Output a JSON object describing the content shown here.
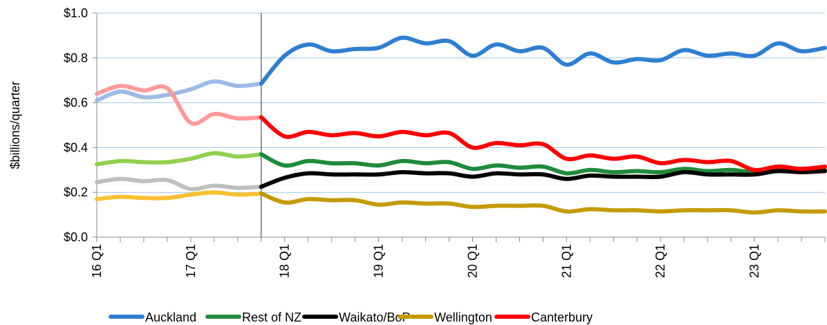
{
  "chart_data": {
    "type": "line",
    "y_label": "$billions/quarter",
    "categories": [
      "16 Q1",
      null,
      null,
      null,
      "17 Q1",
      null,
      null,
      null,
      "18 Q1",
      null,
      null,
      null,
      "19 Q1",
      null,
      null,
      null,
      "20 Q1",
      null,
      null,
      null,
      "21 Q1",
      null,
      null,
      null,
      "22 Q1",
      null,
      null,
      null,
      "23 Q1",
      null,
      null,
      null
    ],
    "vline_index": 7,
    "ylim": [
      0,
      1
    ],
    "yticks": [
      {
        "value": 0,
        "label": "$0.0"
      },
      {
        "value": 0.2,
        "label": "$0.2"
      },
      {
        "value": 0.4,
        "label": "$0.4"
      },
      {
        "value": 0.6,
        "label": "$0.6"
      },
      {
        "value": 0.8,
        "label": "$0.8"
      },
      {
        "value": 1,
        "label": "$1.0"
      }
    ],
    "grid": true,
    "legend": "bottom",
    "series": [
      {
        "name": "Auckland",
        "color": "#2f7fd0",
        "faded_color": "#9dbbe6",
        "values": [
          0.61,
          0.65,
          0.625,
          0.635,
          0.66,
          0.695,
          0.675,
          0.685,
          0.81,
          0.86,
          0.83,
          0.84,
          0.845,
          0.89,
          0.865,
          0.875,
          0.81,
          0.86,
          0.83,
          0.845,
          0.77,
          0.82,
          0.78,
          0.795,
          0.79,
          0.835,
          0.81,
          0.82,
          0.81,
          0.865,
          0.83,
          0.845
        ]
      },
      {
        "name": "Rest of NZ",
        "color": "#1f8a3b",
        "faded_color": "#92d050",
        "values": [
          0.325,
          0.34,
          0.335,
          0.335,
          0.35,
          0.375,
          0.36,
          0.37,
          0.32,
          0.34,
          0.33,
          0.33,
          0.32,
          0.34,
          0.33,
          0.335,
          0.305,
          0.32,
          0.31,
          0.315,
          0.285,
          0.3,
          0.29,
          0.295,
          0.29,
          0.305,
          0.295,
          0.3,
          0.29,
          0.3,
          0.295,
          0.3
        ]
      },
      {
        "name": "Waikato/BoP",
        "color": "#000000",
        "faded_color": "#bfbfbf",
        "values": [
          0.245,
          0.26,
          0.25,
          0.255,
          0.215,
          0.23,
          0.22,
          0.225,
          0.265,
          0.285,
          0.28,
          0.28,
          0.28,
          0.29,
          0.285,
          0.285,
          0.27,
          0.285,
          0.28,
          0.28,
          0.26,
          0.275,
          0.27,
          0.27,
          0.27,
          0.29,
          0.28,
          0.28,
          0.28,
          0.295,
          0.29,
          0.295
        ]
      },
      {
        "name": "Wellington",
        "color": "#c49a00",
        "faded_color": "#f7c12f",
        "values": [
          0.17,
          0.18,
          0.175,
          0.175,
          0.19,
          0.2,
          0.19,
          0.195,
          0.155,
          0.17,
          0.165,
          0.165,
          0.145,
          0.155,
          0.15,
          0.15,
          0.135,
          0.14,
          0.14,
          0.14,
          0.115,
          0.125,
          0.12,
          0.12,
          0.115,
          0.12,
          0.12,
          0.12,
          0.11,
          0.12,
          0.115,
          0.115
        ]
      },
      {
        "name": "Canterbury",
        "color": "#ff0000",
        "faded_color": "#ff9999",
        "values": [
          0.64,
          0.675,
          0.655,
          0.665,
          0.51,
          0.55,
          0.53,
          0.535,
          0.45,
          0.47,
          0.455,
          0.465,
          0.45,
          0.47,
          0.455,
          0.465,
          0.4,
          0.42,
          0.41,
          0.415,
          0.35,
          0.365,
          0.35,
          0.36,
          0.33,
          0.345,
          0.335,
          0.34,
          0.3,
          0.315,
          0.305,
          0.315
        ]
      }
    ]
  }
}
